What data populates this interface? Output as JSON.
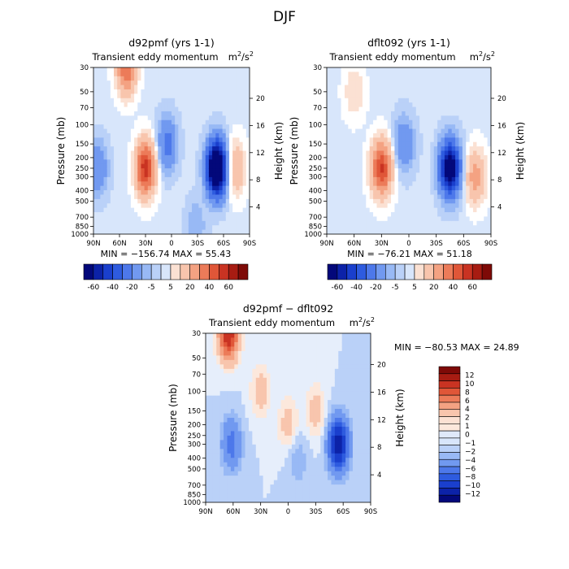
{
  "figure_title": "DJF",
  "colors": {
    "contour_blue": "#3a62d6",
    "contour_red": "#d84a2a",
    "background": "#ffffff"
  },
  "chart_data": [
    {
      "type": "contour",
      "title": "d92pmf (yrs 1-1)",
      "subtitle": "Transient eddy momentum",
      "units": "m²/s²",
      "units_base": "m",
      "units_slash": "/s",
      "xlabel": "",
      "ylabel": "Pressure (mb)",
      "y2label": "Height (km)",
      "x_ticks": [
        "90N",
        "60N",
        "30N",
        "0",
        "30S",
        "60S",
        "90S"
      ],
      "y_ticks": [
        30,
        50,
        70,
        100,
        150,
        200,
        250,
        300,
        400,
        500,
        700,
        850,
        1000
      ],
      "y2_ticks": [
        20,
        16,
        12,
        8,
        4
      ],
      "stats": {
        "min": -156.74,
        "max": 55.43,
        "text": "MIN = −156.74   MAX = 55.43"
      },
      "colorbar_labels": [
        "-60",
        "-40",
        "-20",
        "-5",
        "5",
        "20",
        "40",
        "60"
      ],
      "features": [
        {
          "lat": -52,
          "pressure": 250,
          "sign": "neg",
          "magnitude": 100
        },
        {
          "lat": -28,
          "pressure": 850,
          "sign": "neg",
          "magnitude": 10
        },
        {
          "lat": 30,
          "pressure": 250,
          "sign": "pos",
          "magnitude": 55
        },
        {
          "lat": 52,
          "pressure": 30,
          "sign": "pos",
          "magnitude": 40
        },
        {
          "lat": 5,
          "pressure": 150,
          "sign": "neg",
          "magnitude": 25
        },
        {
          "lat": 85,
          "pressure": 250,
          "sign": "neg",
          "magnitude": 20
        },
        {
          "lat": -74,
          "pressure": 250,
          "sign": "pos",
          "magnitude": 20
        }
      ]
    },
    {
      "type": "contour",
      "title": "dflt092 (yrs 1-1)",
      "subtitle": "Transient eddy momentum",
      "units": "m²/s²",
      "units_base": "m",
      "units_slash": "/s",
      "xlabel": "",
      "ylabel": "Pressure (mb)",
      "y2label": "Height (km)",
      "x_ticks": [
        "90N",
        "60N",
        "30N",
        "0",
        "30S",
        "60S",
        "90S"
      ],
      "y_ticks": [
        30,
        50,
        70,
        100,
        150,
        200,
        250,
        300,
        400,
        500,
        700,
        850,
        1000
      ],
      "y2_ticks": [
        20,
        16,
        12,
        8,
        4
      ],
      "stats": {
        "min": -76.21,
        "max": 51.18,
        "text": "MIN = −76.21   MAX = 51.18"
      },
      "colorbar_labels": [
        "-60",
        "-40",
        "-20",
        "-5",
        "5",
        "20",
        "40",
        "60"
      ],
      "features": [
        {
          "lat": -45,
          "pressure": 250,
          "sign": "neg",
          "magnitude": 76
        },
        {
          "lat": 30,
          "pressure": 250,
          "sign": "pos",
          "magnitude": 51
        },
        {
          "lat": 5,
          "pressure": 150,
          "sign": "neg",
          "magnitude": 20
        },
        {
          "lat": 60,
          "pressure": 50,
          "sign": "pos",
          "magnitude": 10
        },
        {
          "lat": -73,
          "pressure": 300,
          "sign": "pos",
          "magnitude": 25
        }
      ]
    },
    {
      "type": "contour",
      "title": "d92pmf − dflt092",
      "subtitle": "Transient eddy momentum",
      "units": "m²/s²",
      "units_base": "m",
      "units_slash": "/s",
      "xlabel": "",
      "ylabel": "Pressure (mb)",
      "y2label": "Height (km)",
      "x_ticks": [
        "90N",
        "60N",
        "30N",
        "0",
        "30S",
        "60S",
        "90S"
      ],
      "y_ticks": [
        30,
        50,
        70,
        100,
        150,
        200,
        250,
        300,
        400,
        500,
        700,
        850,
        1000
      ],
      "y2_ticks": [
        20,
        16,
        12,
        8,
        4
      ],
      "stats": {
        "min": -80.53,
        "max": 24.89,
        "text": "MIN = −80.53   MAX =   24.89"
      },
      "colorbar_labels": [
        "12",
        "10",
        "8",
        "6",
        "4",
        "2",
        "1",
        "0",
        "−1",
        "−2",
        "−4",
        "−6",
        "−8",
        "−10",
        "−12"
      ],
      "features": [
        {
          "lat": -55,
          "pressure": 300,
          "sign": "neg",
          "magnitude": 12
        },
        {
          "lat": 65,
          "pressure": 30,
          "sign": "pos",
          "magnitude": 12
        },
        {
          "lat": 62,
          "pressure": 300,
          "sign": "neg",
          "magnitude": 5
        },
        {
          "lat": 30,
          "pressure": 100,
          "sign": "pos",
          "magnitude": 3
        },
        {
          "lat": 0,
          "pressure": 200,
          "sign": "pos",
          "magnitude": 3
        },
        {
          "lat": -30,
          "pressure": 150,
          "sign": "pos",
          "magnitude": 3
        },
        {
          "lat": -10,
          "pressure": 400,
          "sign": "neg",
          "magnitude": 2
        }
      ]
    }
  ]
}
